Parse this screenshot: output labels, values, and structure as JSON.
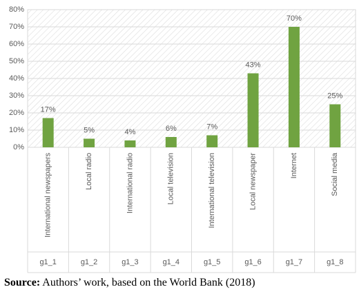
{
  "chart_data": {
    "type": "bar",
    "categories": [
      "International newspapers",
      "Local radio",
      "International radio",
      "Local television",
      "International television",
      "Local newspaper",
      "Internet",
      "Social media"
    ],
    "category_codes": [
      "g1_1",
      "g1_2",
      "g1_3",
      "g1_4",
      "g1_5",
      "g1_6",
      "g1_7",
      "g1_8"
    ],
    "values": [
      17,
      5,
      4,
      6,
      7,
      43,
      70,
      25
    ],
    "value_labels": [
      "17%",
      "5%",
      "4%",
      "6%",
      "7%",
      "43%",
      "70%",
      "25%"
    ],
    "color": "#70a341",
    "ylim": [
      0,
      80
    ],
    "yticks": [
      {
        "value": 0,
        "label": "0%"
      },
      {
        "value": 10,
        "label": "10%"
      },
      {
        "value": 20,
        "label": "20%"
      },
      {
        "value": 30,
        "label": "30%"
      },
      {
        "value": 40,
        "label": "40%"
      },
      {
        "value": 50,
        "label": "50%"
      },
      {
        "value": 60,
        "label": "60%"
      },
      {
        "value": 70,
        "label": "70%"
      },
      {
        "value": 80,
        "label": "80%"
      }
    ],
    "grid": true
  },
  "caption": {
    "label": "Source:",
    "text": "Authors’ work, based on the World Bank (2018)"
  }
}
